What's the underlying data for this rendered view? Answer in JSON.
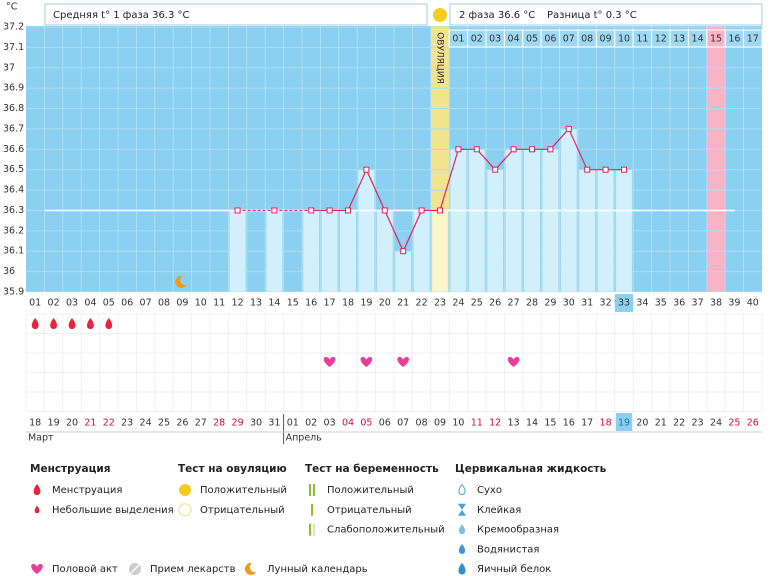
{
  "chart_data": {
    "type": "line",
    "y_unit": "°C",
    "header": {
      "phase1": "Средняя t° 1 фаза 36.3 °C",
      "phase2": "2 фаза 36.6 °C",
      "difference": "Разница t° 0.3 °C"
    },
    "ovulation_label": "ОВУЛЯЦИЯ",
    "categories": [
      "01",
      "02",
      "03",
      "04",
      "05",
      "06",
      "07",
      "08",
      "09",
      "10",
      "11",
      "12",
      "13",
      "14",
      "15",
      "16",
      "17",
      "18",
      "19",
      "20",
      "21",
      "22",
      "23",
      "24",
      "25",
      "26",
      "27",
      "28",
      "29",
      "30",
      "31",
      "32",
      "33",
      "34",
      "35",
      "36",
      "37",
      "38",
      "39",
      "40"
    ],
    "values": [
      null,
      null,
      null,
      null,
      null,
      null,
      null,
      null,
      null,
      null,
      null,
      36.3,
      null,
      36.3,
      null,
      36.3,
      36.3,
      36.3,
      36.5,
      36.3,
      36.1,
      36.3,
      36.3,
      36.6,
      36.6,
      36.5,
      36.6,
      36.6,
      36.6,
      36.7,
      36.5,
      36.5,
      36.5,
      null,
      null,
      null,
      null,
      null,
      null,
      null
    ],
    "color": "#e0245e",
    "coverline": 36.3,
    "ylim": [
      35.9,
      37.2
    ],
    "yticks": [
      35.9,
      36,
      36.1,
      36.2,
      36.3,
      36.4,
      36.5,
      36.6,
      36.7,
      36.8,
      36.9,
      37,
      37.1,
      37.2
    ],
    "ovulation_day": "23",
    "current_day": "33",
    "marked_day": "38",
    "phase2_days": [
      "01",
      "02",
      "03",
      "04",
      "05",
      "06",
      "07",
      "08",
      "09",
      "10",
      "11",
      "12",
      "13",
      "14",
      "15",
      "16",
      "17"
    ],
    "dates": [
      "18",
      "19",
      "20",
      "21",
      "22",
      "23",
      "24",
      "25",
      "26",
      "27",
      "28",
      "29",
      "30",
      "31",
      "01",
      "02",
      "03",
      "04",
      "05",
      "06",
      "07",
      "08",
      "09",
      "10",
      "11",
      "12",
      "13",
      "14",
      "15",
      "16",
      "17",
      "18",
      "19",
      "20",
      "21",
      "22",
      "23",
      "24",
      "25",
      "26"
    ],
    "date_colors": [
      "#333",
      "#333",
      "#333",
      "#d0103a",
      "#d0103a",
      "#333",
      "#333",
      "#333",
      "#333",
      "#333",
      "#d0103a",
      "#d0103a",
      "#333",
      "#333",
      "#333",
      "#333",
      "#333",
      "#d0103a",
      "#d0103a",
      "#333",
      "#333",
      "#333",
      "#333",
      "#333",
      "#d0103a",
      "#d0103a",
      "#333",
      "#333",
      "#333",
      "#333",
      "#333",
      "#d0103a",
      "#2a6fb0",
      "#333",
      "#333",
      "#333",
      "#333",
      "#333",
      "#d0103a",
      "#d0103a"
    ],
    "months": [
      {
        "label": "Март",
        "start": 0
      },
      {
        "label": "Апрель",
        "start": 14
      }
    ],
    "events": {
      "menstruation": [
        "01",
        "02",
        "03",
        "04",
        "05"
      ],
      "intercourse": [
        "17",
        "19",
        "21",
        "27"
      ],
      "lunar": [
        "09"
      ]
    }
  },
  "legend": {
    "groups": [
      {
        "title": "Менструация",
        "items": [
          "Менструация",
          "Небольшие выделения"
        ]
      },
      {
        "title": "Тест на овуляцию",
        "items": [
          "Положительный",
          "Отрицательный"
        ]
      },
      {
        "title": "Тест на беременность",
        "items": [
          "Положительный",
          "Отрицательный",
          "Слабоположительный"
        ]
      },
      {
        "title": "Цервикальная жидкость",
        "items": [
          "Сухо",
          "Клейкая",
          "Кремообразная",
          "Водянистая",
          "Яичный белок"
        ]
      }
    ],
    "other": [
      "Половой акт",
      "Прием лекарств",
      "Лунный календарь"
    ]
  }
}
